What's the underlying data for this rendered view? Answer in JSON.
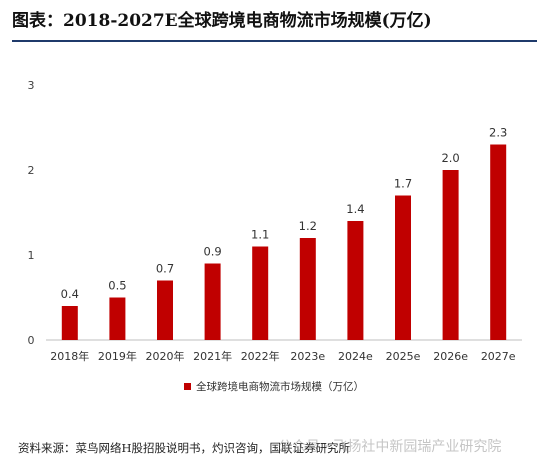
{
  "header": {
    "title": "图表：2018-2027E全球跨境电商物流市场规模(万亿)"
  },
  "footer": {
    "source": "资料来源：菜鸟网络H股招股说明书，灼识咨询，国联证券研究所",
    "watermark": "公众号 · 飞扬社中新园瑞产业研究院"
  },
  "colors": {
    "bar": "#c00000",
    "axis": "#bfbfbf",
    "rule": "#1f3a6b"
  },
  "chart_data": {
    "type": "bar",
    "categories": [
      "2018年",
      "2019年",
      "2020年",
      "2021年",
      "2022年",
      "2023e",
      "2024e",
      "2025e",
      "2026e",
      "2027e"
    ],
    "series": [
      {
        "name": "全球跨境电商物流市场规模（万亿）",
        "values": [
          0.4,
          0.5,
          0.7,
          0.9,
          1.1,
          1.2,
          1.4,
          1.7,
          2.0,
          2.3
        ],
        "labels": [
          "0.4",
          "0.5",
          "0.7",
          "0.9",
          "1.1",
          "1.2",
          "1.4",
          "1.7",
          "2.0",
          "2.3"
        ]
      }
    ],
    "ylim": [
      0,
      3
    ],
    "yticks": [
      0,
      1,
      2,
      3
    ],
    "grid": false,
    "legend": "bottom"
  }
}
